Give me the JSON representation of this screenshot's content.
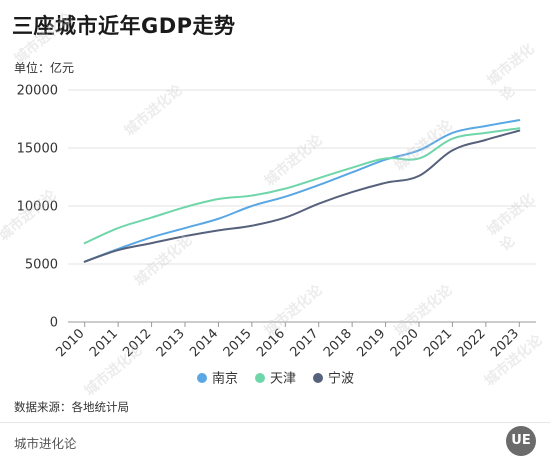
{
  "header": {
    "title": "三座城市近年GDP走势",
    "unit": "单位：亿元"
  },
  "footer": {
    "source": "数据来源：各地统计局",
    "brand": "城市进化论",
    "logo_text": "UE"
  },
  "watermark_text": "城市进化论",
  "chart_data": {
    "type": "line",
    "x": [
      "2010",
      "2011",
      "2012",
      "2013",
      "2014",
      "2015",
      "2016",
      "2017",
      "2018",
      "2019",
      "2020",
      "2021",
      "2022",
      "2023"
    ],
    "ylim": [
      0,
      20000
    ],
    "yticks": [
      0,
      5000,
      10000,
      15000,
      20000
    ],
    "grid": true,
    "legend_position": "bottom",
    "series": [
      {
        "name": "南京",
        "color": "#5aa7e4",
        "values": [
          5200,
          6300,
          7300,
          8100,
          8900,
          10000,
          10800,
          11800,
          12900,
          14000,
          14800,
          16300,
          16900,
          17400
        ]
      },
      {
        "name": "天津",
        "color": "#6fd6aa",
        "values": [
          6800,
          8100,
          9000,
          9900,
          10600,
          10900,
          11500,
          12400,
          13300,
          14100,
          14100,
          15800,
          16300,
          16700
        ]
      },
      {
        "name": "宁波",
        "color": "#56617c",
        "values": [
          5200,
          6200,
          6800,
          7400,
          7900,
          8300,
          9000,
          10200,
          11200,
          12000,
          12600,
          14800,
          15700,
          16500
        ]
      }
    ]
  }
}
